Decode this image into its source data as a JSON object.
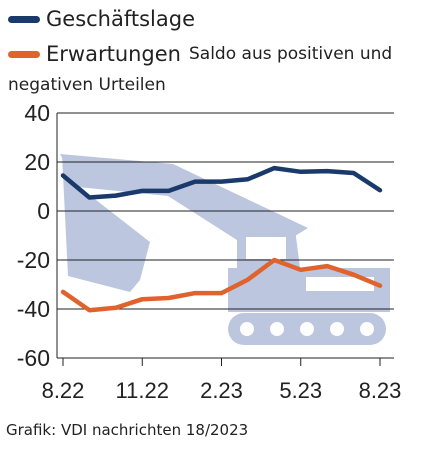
{
  "chart_data": {
    "type": "line",
    "x": [
      "8.22",
      "9.22",
      "10.22",
      "11.22",
      "12.22",
      "1.23",
      "2.23",
      "3.23",
      "4.23",
      "5.23",
      "6.23",
      "7.23",
      "8.23"
    ],
    "xticks": [
      "8.22",
      "11.22",
      "2.23",
      "5.23",
      "8.23"
    ],
    "yticks": [
      40,
      20,
      0,
      -20,
      -40,
      -60
    ],
    "ylim": [
      -60,
      40
    ],
    "grid": true,
    "legend_position": "top-left",
    "series": [
      {
        "name": "Geschäftslage",
        "color": "#1a3a6b",
        "values": [
          14.5,
          5.5,
          6.3,
          8.2,
          8.2,
          12.0,
          12.0,
          13.0,
          17.5,
          16.0,
          16.3,
          15.5,
          8.5
        ]
      },
      {
        "name": "Erwartungen",
        "color": "#e0622c",
        "values": [
          -33.0,
          -40.5,
          -39.5,
          -36.0,
          -35.5,
          -33.5,
          -33.5,
          -28.0,
          -20.0,
          -24.0,
          -22.5,
          -26.0,
          -30.5
        ]
      }
    ],
    "annotation_line1": "Saldo aus positiven und",
    "annotation_line2": "negativen Urteilen",
    "source": "Grafik: VDI nachrichten 18/2023",
    "background_illustration": "excavator",
    "illustration_color": "#bcc6df"
  }
}
